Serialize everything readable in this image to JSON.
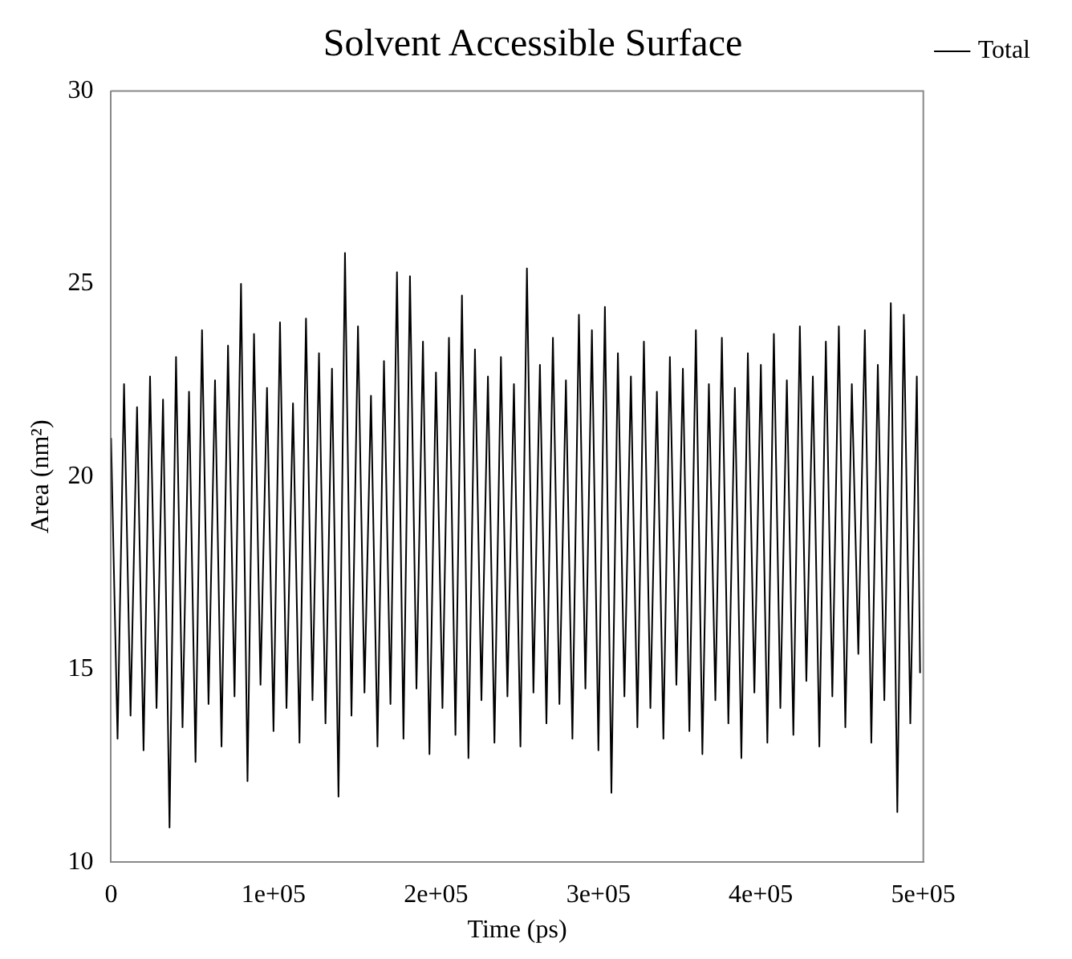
{
  "chart_data": {
    "type": "line",
    "title": "Solvent Accessible Surface",
    "xlabel": "Time (ps)",
    "ylabel": "Area (nm²)",
    "xlim": [
      0,
      500000
    ],
    "xticks": [
      0,
      {
        "value": 100000,
        "label": "1e+05"
      },
      {
        "value": 200000,
        "label": "2e+05"
      },
      {
        "value": 300000,
        "label": "3e+05"
      },
      {
        "value": 400000,
        "label": "4e+05"
      },
      {
        "value": 500000,
        "label": "5e+05"
      }
    ],
    "ylim": [
      10,
      30
    ],
    "yticks": [
      10,
      15,
      20,
      25,
      30
    ],
    "grid": false,
    "legend": "top right",
    "marker": "none",
    "line_style": "solid",
    "series": [
      {
        "name": "Total",
        "color": "#000000",
        "x": [
          0,
          4000,
          8000,
          12000,
          16000,
          20000,
          24000,
          28000,
          32000,
          36000,
          40000,
          44000,
          48000,
          52000,
          56000,
          60000,
          64000,
          68000,
          72000,
          76000,
          80000,
          84000,
          88000,
          92000,
          96000,
          100000,
          104000,
          108000,
          112000,
          116000,
          120000,
          124000,
          128000,
          132000,
          136000,
          140000,
          144000,
          148000,
          152000,
          156000,
          160000,
          164000,
          168000,
          172000,
          176000,
          180000,
          184000,
          188000,
          192000,
          196000,
          200000,
          204000,
          208000,
          212000,
          216000,
          220000,
          224000,
          228000,
          232000,
          236000,
          240000,
          244000,
          248000,
          252000,
          256000,
          260000,
          264000,
          268000,
          272000,
          276000,
          280000,
          284000,
          288000,
          292000,
          296000,
          300000,
          304000,
          308000,
          312000,
          316000,
          320000,
          324000,
          328000,
          332000,
          336000,
          340000,
          344000,
          348000,
          352000,
          356000,
          360000,
          364000,
          368000,
          372000,
          376000,
          380000,
          384000,
          388000,
          392000,
          396000,
          400000,
          404000,
          408000,
          412000,
          416000,
          420000,
          424000,
          428000,
          432000,
          436000,
          440000,
          444000,
          448000,
          452000,
          456000,
          460000,
          464000,
          468000,
          472000,
          476000,
          480000,
          484000,
          488000,
          492000,
          496000,
          498000
        ],
        "values": [
          21.0,
          13.2,
          22.4,
          13.8,
          21.8,
          12.9,
          22.6,
          14.0,
          22.0,
          10.9,
          23.1,
          13.5,
          22.2,
          12.6,
          23.8,
          14.1,
          22.5,
          13.0,
          23.4,
          14.3,
          25.0,
          12.1,
          23.7,
          14.6,
          22.3,
          13.4,
          24.0,
          14.0,
          21.9,
          13.1,
          24.1,
          14.2,
          23.2,
          13.6,
          22.8,
          11.7,
          25.8,
          13.8,
          23.9,
          14.4,
          22.1,
          13.0,
          23.0,
          14.1,
          25.3,
          13.2,
          25.2,
          14.5,
          23.5,
          12.8,
          22.7,
          14.0,
          23.6,
          13.3,
          24.7,
          12.7,
          23.3,
          14.2,
          22.6,
          13.1,
          23.1,
          14.3,
          22.4,
          13.0,
          25.4,
          14.4,
          22.9,
          13.6,
          23.6,
          14.1,
          22.5,
          13.2,
          24.2,
          14.5,
          23.8,
          12.9,
          24.4,
          11.8,
          23.2,
          14.3,
          22.6,
          13.5,
          23.5,
          14.0,
          22.2,
          13.2,
          23.1,
          14.6,
          22.8,
          13.4,
          23.8,
          12.8,
          22.4,
          14.2,
          23.6,
          13.6,
          22.3,
          12.7,
          23.2,
          14.4,
          22.9,
          13.1,
          23.7,
          14.0,
          22.5,
          13.3,
          23.9,
          14.7,
          22.6,
          13.0,
          23.5,
          14.3,
          23.9,
          13.5,
          22.4,
          15.4,
          23.8,
          13.1,
          22.9,
          14.2,
          24.5,
          11.3,
          24.2,
          13.6,
          22.6,
          14.9
        ]
      }
    ]
  }
}
